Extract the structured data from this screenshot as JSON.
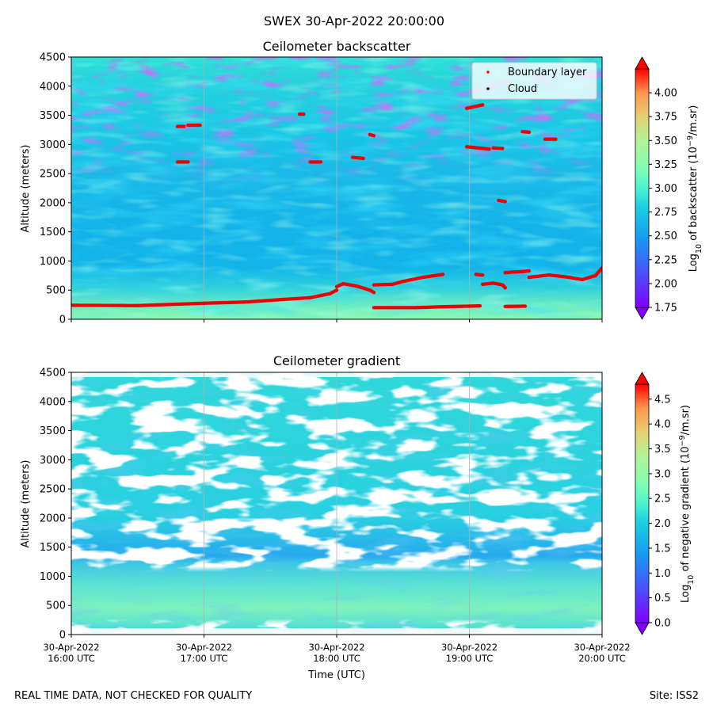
{
  "figure": {
    "title": "SWEX 30-Apr-2022 20:00:00",
    "footer_left": "REAL TIME DATA, NOT CHECKED FOR QUALITY",
    "footer_right": "Site: ISS2"
  },
  "chart_data": [
    {
      "type": "heatmap",
      "title": "Ceilometer backscatter",
      "ylabel": "Altitude (meters)",
      "xlabel": "",
      "ylim": [
        0,
        4500
      ],
      "xlim_hours": [
        16,
        20
      ],
      "yticks": [
        0,
        500,
        1000,
        1500,
        2000,
        2500,
        3000,
        3500,
        4000,
        4500
      ],
      "grid": "vertical",
      "colormap": "rainbow",
      "colorbar": {
        "label_main": "Log",
        "label_sub": "10",
        "label_rest": " of backscatter (10",
        "label_sup": "−9",
        "label_end": "/m.sr)",
        "range": [
          1.75,
          4.25
        ],
        "ticks": [
          "1.75",
          "2.00",
          "2.25",
          "2.50",
          "2.75",
          "3.00",
          "3.25",
          "3.50",
          "3.75",
          "4.00"
        ]
      },
      "legend": {
        "placement": "top-right",
        "entries": [
          {
            "label": "Boundary layer",
            "color": "#ff0000"
          },
          {
            "label": "Cloud",
            "color": "#000000"
          }
        ]
      },
      "boundary_layer_segments": [
        [
          [
            16.0,
            240
          ],
          [
            16.5,
            235
          ],
          [
            17.0,
            275
          ],
          [
            17.3,
            295
          ],
          [
            17.6,
            340
          ],
          [
            17.8,
            370
          ],
          [
            17.95,
            440
          ],
          [
            18.0,
            500
          ]
        ],
        [
          [
            18.0,
            560
          ],
          [
            18.05,
            610
          ],
          [
            18.15,
            570
          ],
          [
            18.25,
            500
          ],
          [
            18.28,
            460
          ]
        ],
        [
          [
            18.28,
            590
          ],
          [
            18.42,
            600
          ],
          [
            18.5,
            650
          ],
          [
            18.65,
            720
          ],
          [
            18.8,
            770
          ]
        ],
        [
          [
            18.28,
            200
          ],
          [
            18.6,
            200
          ],
          [
            18.8,
            215
          ],
          [
            19.0,
            225
          ],
          [
            19.08,
            230
          ]
        ],
        [
          [
            19.05,
            770
          ],
          [
            19.1,
            760
          ]
        ],
        [
          [
            19.1,
            600
          ],
          [
            19.18,
            620
          ],
          [
            19.25,
            590
          ],
          [
            19.27,
            540
          ]
        ],
        [
          [
            19.27,
            800
          ],
          [
            19.4,
            820
          ],
          [
            19.45,
            830
          ]
        ],
        [
          [
            19.27,
            220
          ],
          [
            19.42,
            225
          ]
        ],
        [
          [
            19.45,
            720
          ],
          [
            19.6,
            760
          ],
          [
            19.75,
            720
          ],
          [
            19.85,
            680
          ],
          [
            19.95,
            750
          ],
          [
            20.0,
            880
          ]
        ],
        [
          [
            16.8,
            2700
          ],
          [
            16.88,
            2700
          ]
        ],
        [
          [
            16.8,
            3310
          ],
          [
            16.85,
            3310
          ]
        ],
        [
          [
            16.88,
            3330
          ],
          [
            16.97,
            3330
          ]
        ],
        [
          [
            17.72,
            3520
          ],
          [
            17.75,
            3520
          ]
        ],
        [
          [
            17.8,
            2700
          ],
          [
            17.88,
            2700
          ]
        ],
        [
          [
            18.12,
            2780
          ],
          [
            18.2,
            2760
          ]
        ],
        [
          [
            18.25,
            3170
          ],
          [
            18.28,
            3150
          ]
        ],
        [
          [
            18.98,
            3620
          ],
          [
            19.1,
            3680
          ]
        ],
        [
          [
            18.98,
            2960
          ],
          [
            19.15,
            2920
          ]
        ],
        [
          [
            19.4,
            3220
          ],
          [
            19.45,
            3210
          ]
        ],
        [
          [
            19.57,
            3090
          ],
          [
            19.65,
            3090
          ]
        ],
        [
          [
            19.18,
            2940
          ],
          [
            19.25,
            2930
          ]
        ],
        [
          [
            19.22,
            2040
          ],
          [
            19.27,
            2020
          ]
        ]
      ],
      "cloud_points": []
    },
    {
      "type": "heatmap",
      "title": "Ceilometer gradient",
      "ylabel": "Altitude (meters)",
      "xlabel": "Time (UTC)",
      "ylim": [
        0,
        4500
      ],
      "xlim_hours": [
        16,
        20
      ],
      "yticks": [
        0,
        500,
        1000,
        1500,
        2000,
        2500,
        3000,
        3500,
        4000,
        4500
      ],
      "xticks": [
        {
          "hour": 16,
          "line1": "30-Apr-2022",
          "line2": "16:00 UTC"
        },
        {
          "hour": 17,
          "line1": "30-Apr-2022",
          "line2": "17:00 UTC"
        },
        {
          "hour": 18,
          "line1": "30-Apr-2022",
          "line2": "18:00 UTC"
        },
        {
          "hour": 19,
          "line1": "30-Apr-2022",
          "line2": "19:00 UTC"
        },
        {
          "hour": 20,
          "line1": "30-Apr-2022",
          "line2": "20:00 UTC"
        }
      ],
      "grid": "vertical",
      "colormap": "rainbow",
      "colorbar": {
        "label_main": "Log",
        "label_sub": "10",
        "label_rest": " of negative gradient (10",
        "label_sup": "−9",
        "label_end": "/m.sr)",
        "range": [
          0.0,
          4.8
        ],
        "ticks": [
          "0.0",
          "0.5",
          "1.0",
          "1.5",
          "2.0",
          "2.5",
          "3.0",
          "3.5",
          "4.0",
          "4.5"
        ]
      }
    }
  ]
}
